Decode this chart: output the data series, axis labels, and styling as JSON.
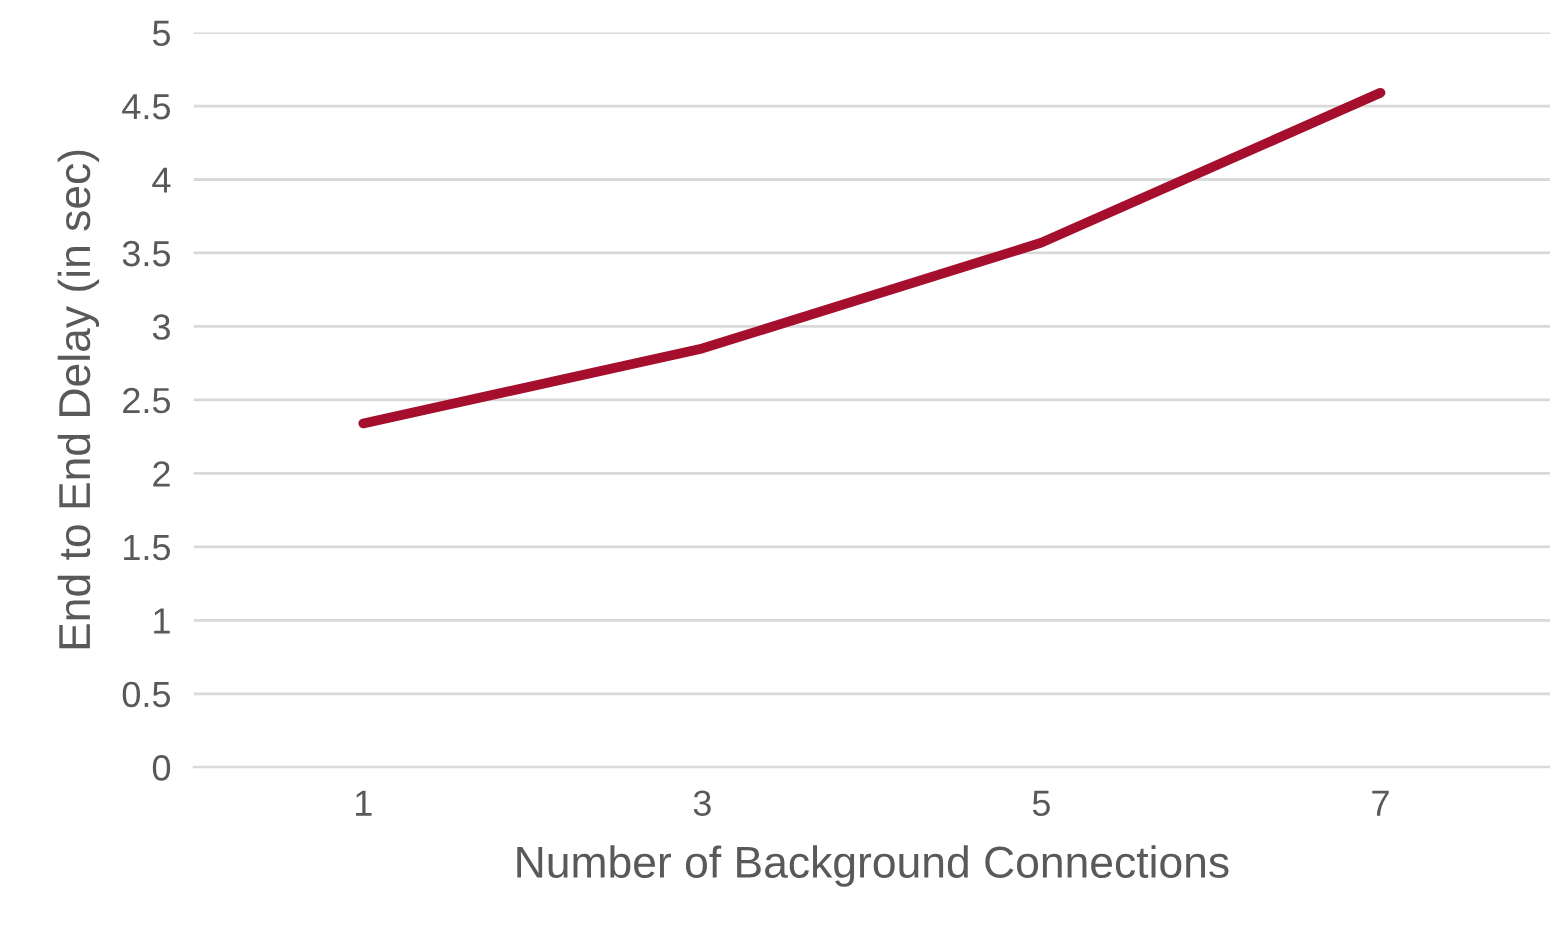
{
  "chart_data": {
    "type": "line",
    "xlabel": "Number of Background Connections",
    "ylabel": "End to End Delay (in sec)",
    "categories": [
      "1",
      "3",
      "5",
      "7"
    ],
    "series": [
      {
        "color": "#a50f2d",
        "values": [
          2.34,
          2.85,
          3.57,
          4.59
        ]
      }
    ],
    "ylim": [
      0,
      5
    ],
    "yticks": [
      0,
      0.5,
      1,
      1.5,
      2,
      2.5,
      3,
      3.5,
      4,
      4.5,
      5
    ],
    "grid": "y",
    "marker": "none",
    "line_style": "solid",
    "legend": false
  }
}
